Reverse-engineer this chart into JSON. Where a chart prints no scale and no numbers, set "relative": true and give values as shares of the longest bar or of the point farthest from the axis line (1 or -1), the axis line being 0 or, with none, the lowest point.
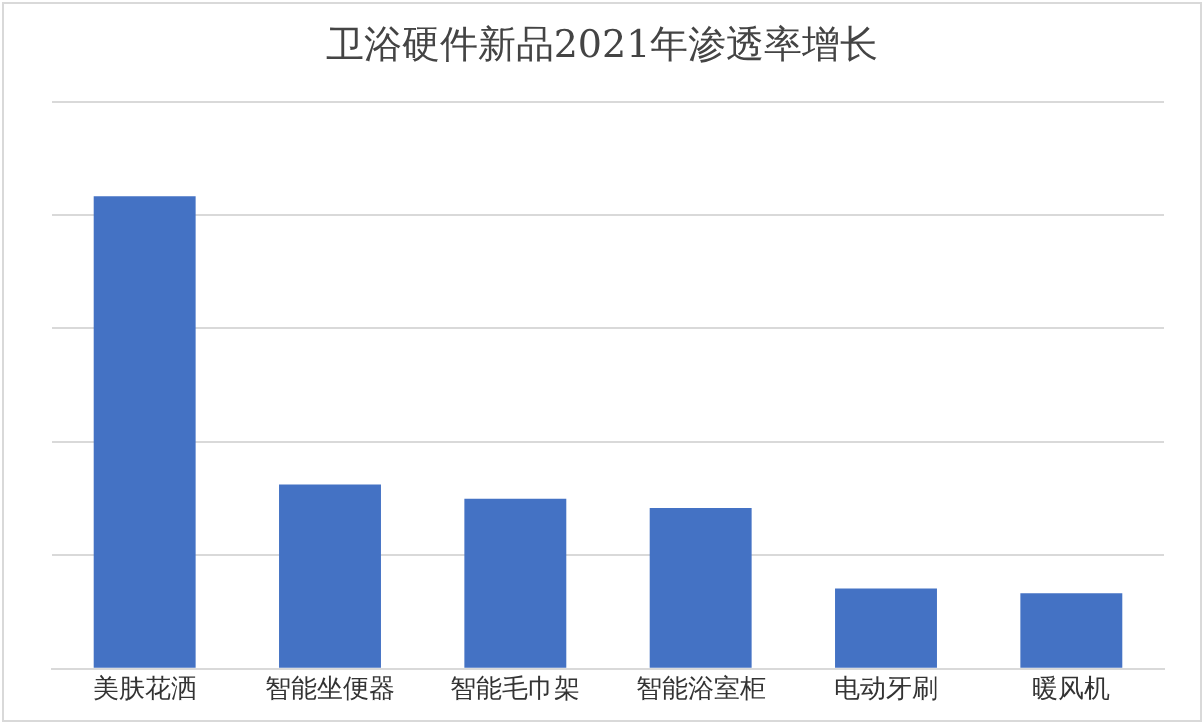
{
  "chart_data": {
    "type": "bar",
    "title": "卫浴硬件新品2021年渗透率增长",
    "categories": [
      "美肤花洒",
      "智能坐便器",
      "智能毛巾架",
      "智能浴室柜",
      "电动牙刷",
      "暖风机"
    ],
    "values": [
      1,
      0.39,
      0.36,
      0.34,
      0.17,
      0.16
    ],
    "color": "#4472c4",
    "relative": true,
    "grid": "y"
  }
}
